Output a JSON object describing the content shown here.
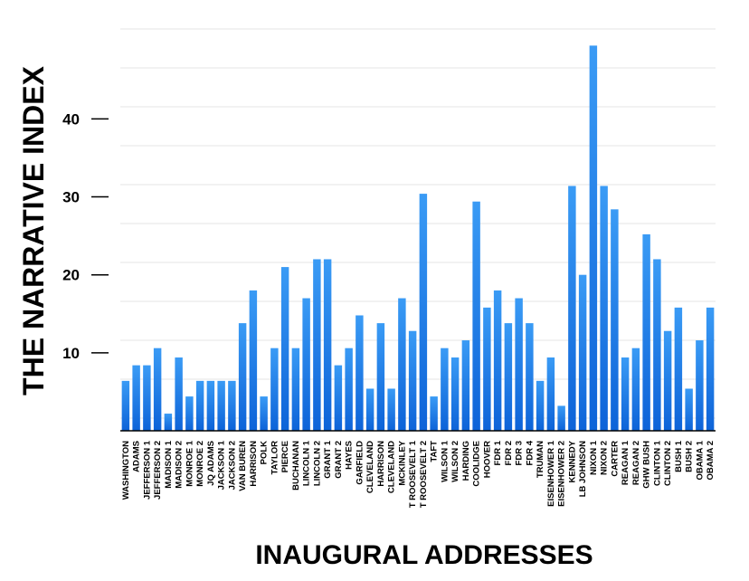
{
  "chart_data": {
    "type": "bar",
    "title": "",
    "xlabel": "INAUGURAL ADDRESSES",
    "ylabel": "THE NARRATIVE INDEX",
    "ylim": [
      0,
      52
    ],
    "yticks": [
      10,
      20,
      30,
      40
    ],
    "grid": true,
    "color": "#1a7fe6",
    "categories": [
      "WASHINGTON",
      "ADAMS",
      "JEFFERSON 1",
      "JEFFERSON 2",
      "MADISON 1",
      "MADISON 2",
      "MONROE 1",
      "MONROE 2",
      "JQ ADAMS",
      "JACKSON 1",
      "JACKSON 2",
      "VAN BUREN",
      "HARRISON",
      "POLK",
      "TAYLOR",
      "PIERCE",
      "BUCHANAN",
      "LINCOLN 1",
      "LINCOLN 2",
      "GRANT 1",
      "GRANT 2",
      "HAYES",
      "GARFIELD",
      "CLEVELAND",
      "HARRISON",
      "CLEVELAND",
      "MCKINLEY",
      "T ROOSEVELT 1",
      "T ROOSEVELT 2",
      "TAFT",
      "WILSON 1",
      "WILSON 2",
      "HARDING",
      "COOLIDGE",
      "HOOVER",
      "FDR 1",
      "FDR 2",
      "FDR 3",
      "FDR 4",
      "TRUMAN",
      "EISENHOWER 1",
      "EISENHOWER 2",
      "KENNEDY",
      "LB JOHNSON",
      "NIXON 1",
      "NIXON 2",
      "CARTER",
      "REAGAN 1",
      "REAGAN 2",
      "GHW BUSH",
      "CLINTON 1",
      "CLINTON 2",
      "BUSH 1",
      "BUSH 2",
      "OBAMA 1",
      "OBAMA 2"
    ],
    "values": [
      6.4,
      8.4,
      8.4,
      10.6,
      2.2,
      9.4,
      4.4,
      6.4,
      6.4,
      6.4,
      6.4,
      13.8,
      18.0,
      4.4,
      10.6,
      21.0,
      10.6,
      17.0,
      22.0,
      22.0,
      8.4,
      10.6,
      14.8,
      5.4,
      13.8,
      5.4,
      17.0,
      12.8,
      30.4,
      4.4,
      10.6,
      9.4,
      11.6,
      29.4,
      15.8,
      18.0,
      13.8,
      17.0,
      13.8,
      6.4,
      9.4,
      3.2,
      31.4,
      20.0,
      49.4,
      31.4,
      28.4,
      9.4,
      10.6,
      25.2,
      22.0,
      12.8,
      15.8,
      5.4,
      11.6,
      15.8
    ]
  }
}
